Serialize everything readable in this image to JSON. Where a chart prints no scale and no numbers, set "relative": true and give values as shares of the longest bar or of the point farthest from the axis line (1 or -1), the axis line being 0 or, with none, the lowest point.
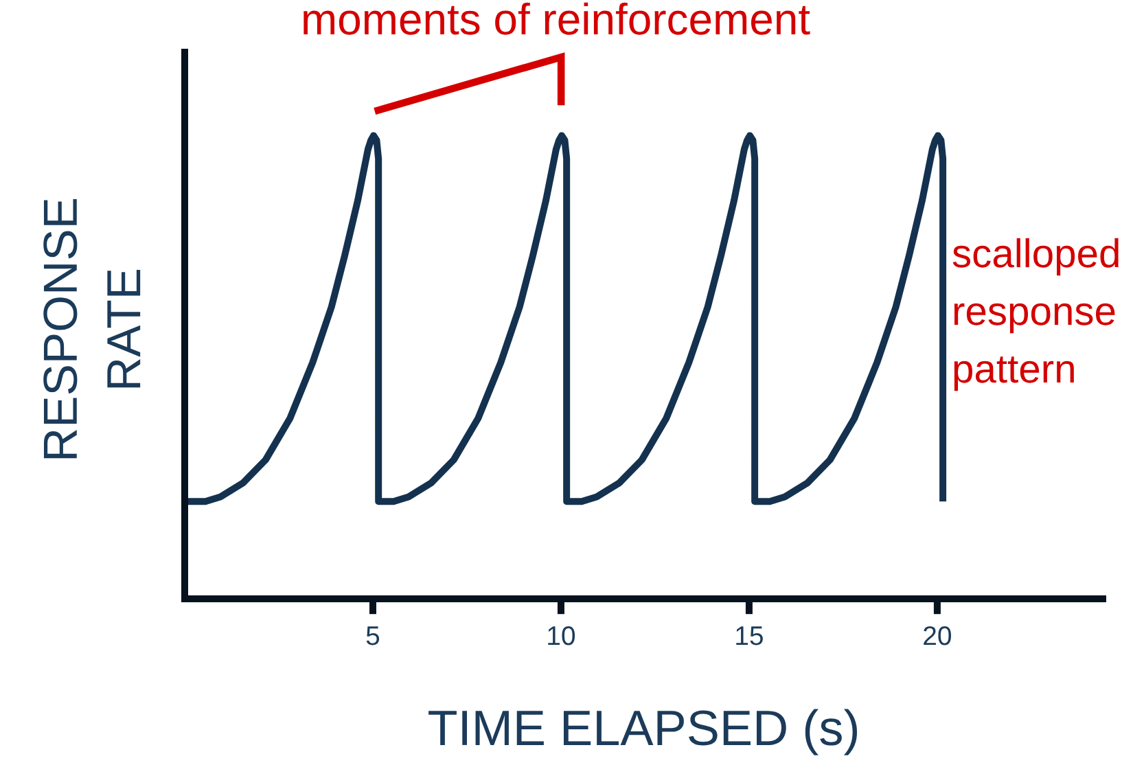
{
  "chart_data": {
    "type": "line",
    "relative": true,
    "xlabel": "TIME ELAPSED (s)",
    "ylabel": "RESPONSE\nRATE",
    "annotations": [
      "moments of reinforcement",
      "scalloped\nresponse\npattern"
    ],
    "xlim": [
      0,
      24.4
    ],
    "xticks": [
      5,
      10,
      15,
      20
    ],
    "tick_labels": "x",
    "color": "#14324f",
    "marker": "none",
    "line_style": "solid",
    "x": [
      0,
      0.55,
      0.95,
      1.55,
      2.15,
      2.8,
      3.4,
      3.9,
      4.25,
      4.6,
      4.87,
      4.95,
      5.02,
      5.1,
      5.15,
      5.15,
      5.55,
      5.95,
      6.55,
      7.15,
      7.8,
      8.4,
      8.9,
      9.25,
      9.6,
      9.87,
      9.95,
      10.02,
      10.1,
      10.15,
      10.15,
      10.55,
      10.95,
      11.55,
      12.15,
      12.8,
      13.4,
      13.9,
      14.25,
      14.6,
      14.87,
      14.95,
      15.02,
      15.1,
      15.15,
      15.15,
      15.55,
      15.95,
      16.55,
      17.15,
      17.8,
      18.4,
      18.9,
      19.25,
      19.6,
      19.87,
      19.95,
      20.02,
      20.1,
      20.15,
      20.15
    ],
    "values": [
      0.21,
      0.21,
      0.22,
      0.25,
      0.3,
      0.39,
      0.51,
      0.63,
      0.74,
      0.86,
      0.97,
      0.99,
      1.0,
      0.99,
      0.95,
      0.21,
      0.21,
      0.22,
      0.25,
      0.3,
      0.39,
      0.51,
      0.63,
      0.74,
      0.86,
      0.97,
      0.99,
      1.0,
      0.99,
      0.95,
      0.21,
      0.21,
      0.22,
      0.25,
      0.3,
      0.39,
      0.51,
      0.63,
      0.74,
      0.86,
      0.97,
      0.99,
      1.0,
      0.99,
      0.95,
      0.21,
      0.21,
      0.22,
      0.25,
      0.3,
      0.39,
      0.51,
      0.63,
      0.74,
      0.86,
      0.97,
      0.99,
      1.0,
      0.99,
      0.95,
      0.21
    ]
  }
}
